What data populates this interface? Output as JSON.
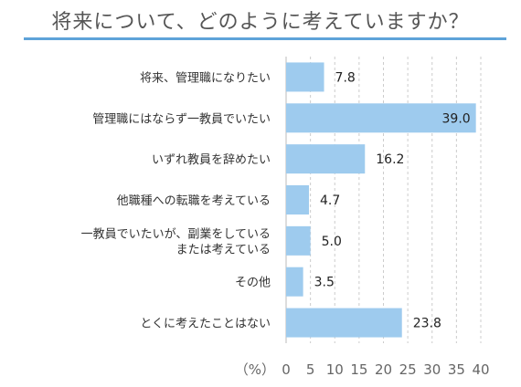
{
  "title": "将来について、どのように考えていますか？",
  "colors": {
    "bar": "#9ecbee",
    "rule": "#5ea3d9",
    "grid": "#cccccc"
  },
  "chart_data": {
    "type": "bar",
    "orientation": "horizontal",
    "categories": [
      [
        "将来、管理職になりたい"
      ],
      [
        "管理職にはならず一教員でいたい"
      ],
      [
        "いずれ教員を辞めたい"
      ],
      [
        "他職種への転職を考えている"
      ],
      [
        "一教員でいたいが、副業をしている",
        "または考えている"
      ],
      [
        "その他"
      ],
      [
        "とくに考えたことはない"
      ]
    ],
    "values": [
      7.8,
      39.0,
      16.2,
      4.7,
      5.0,
      3.5,
      23.8
    ],
    "value_labels": [
      "7.8",
      "39.0",
      "16.2",
      "4.7",
      "5.0",
      "3.5",
      "23.8"
    ],
    "unit_label": "（%）",
    "xlim": [
      0,
      40
    ],
    "xticks": [
      0,
      5,
      10,
      15,
      20,
      25,
      30,
      35,
      40
    ],
    "grid": true
  }
}
